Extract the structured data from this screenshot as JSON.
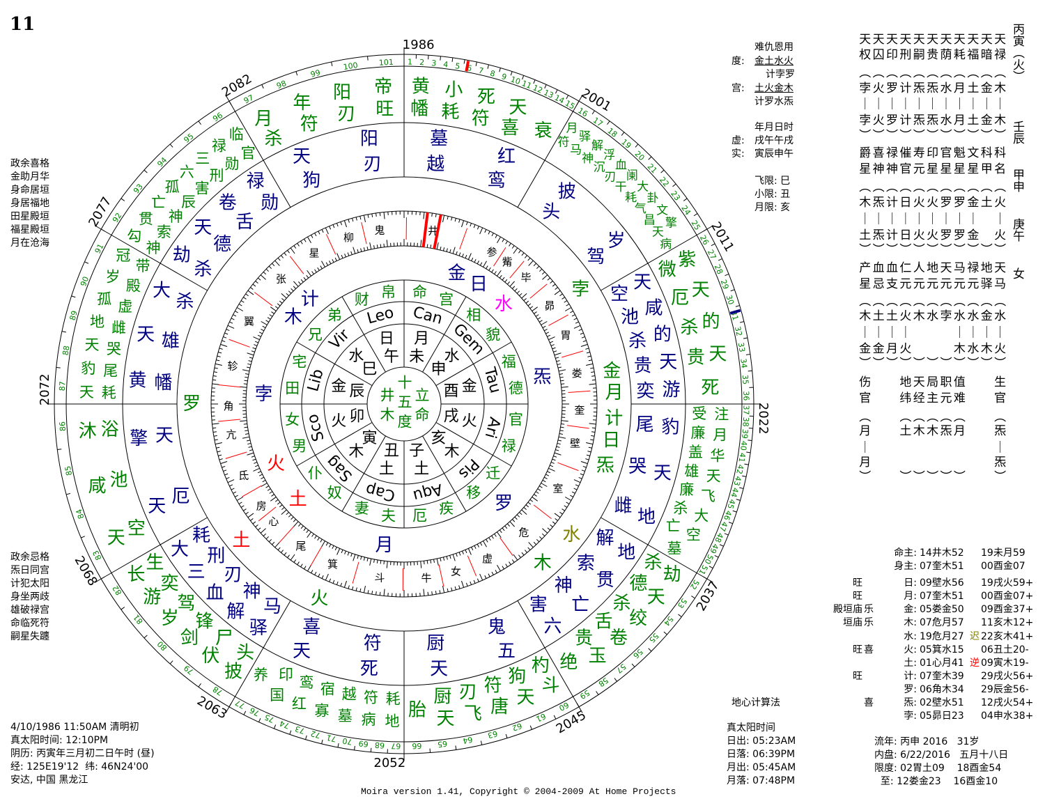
{
  "chart_number": "11",
  "colors": {
    "green": "#008000",
    "blue": "#000080",
    "red": "#ff0000",
    "magenta": "#ff00ff",
    "olive": "#808000",
    "black": "#000000"
  },
  "left_notes_top": [
    "政余喜格",
    "金助月华",
    "身命居垣",
    "身居福地",
    "田星殿垣",
    "福星殿垣",
    "月在沧海"
  ],
  "left_notes_bottom": [
    "政余忌格",
    "炁日同宫",
    "计犯太阳",
    "身坐两歧",
    "雄破禄宫",
    "命临死符",
    "嗣星失躔"
  ],
  "birth_info": [
    "4/10/1986 11:50AM 清明初",
    "真太阳时间: 12:10PM",
    "阴历: 丙寅年三月初二日午时 (昼)",
    "经: 125E19'12  纬: 46N24'00",
    "安达, 中国 黑龙江"
  ],
  "copyright": "Moira version 1.41, Copyright © 2004-2009 At Home Projects",
  "right_info": {
    "nan_header": "难仇恩用",
    "du_label": "度:",
    "du_value": "金土水火",
    "du_value2": "计孛罗",
    "gong_label": "宫:",
    "gong_value": "土火金木",
    "gong_value2": "计罗水炁",
    "time_header": "年月日时",
    "xu_label": "虚:",
    "xu_value": "戌午午戌",
    "shi_label": "实:",
    "shi_value": "寅辰申午",
    "feixian": "飞限: 巳",
    "xiaoxian": "小限: 丑",
    "yuexian": "月限: 亥"
  },
  "right_grid": [
    "天天天天天天天天天天天",
    "权囚印刑嗣贵荫耗福暗禄",
    "︵︵︵︵︵︵︵︵︵︵︵",
    "孛火罗计炁炁水月土金木",
    "｜｜｜｜｜｜｜｜｜｜｜",
    "孛火罗计炁炁水月土金木",
    "︶︶︶︶︶︶︶︶︶︶︶",
    "爵喜禄催寿印官魁文科科",
    "星神神官元星星星星甲名",
    "︵︵︵︵︵︵︵︵︵︵︵",
    "木炁计日火火罗罗金土火",
    "｜｜｜｜｜｜｜｜｜　｜",
    "土炁计日火火罗罗金　火",
    "︶︶︶︶︶︶︶︶︶︶︶",
    "产血血仁人地天马禄地天",
    "星忌支元元元元元元驿马",
    "︵︵︵︵︵︵︵︵︵︵︵",
    "木土土火木水孛水水金水",
    "｜｜｜｜　　　｜｜｜｜",
    "金金月火　　　木水木火",
    "︶︶︶︶︶︶︶︶︶︶︶",
    "伤　　地天局职值　　生",
    "官　　纬经主元难　　官",
    "︵　　︵︵︵︵︵　　︵",
    "月　　土木木炁月　　炁",
    "｜　　　　　　　　　｜",
    "月　　　　　　　　　炁",
    "︶　　︶︶︶︶︶　　︶"
  ],
  "right_labels": [
    "丙寅（火）",
    "壬辰",
    "甲申",
    "庚午",
    "女"
  ],
  "planet_table": [
    {
      "dignity": "",
      "mood": "",
      "key": "命主:",
      "pos1": "14井木52",
      "flag": "",
      "pos2": "19未月59"
    },
    {
      "dignity": "",
      "mood": "",
      "key": "身主:",
      "pos1": "07奎木51",
      "flag": "",
      "pos2": "00酉金07"
    },
    {
      "dignity": "旺",
      "mood": "",
      "key": "日:",
      "pos1": "09壁水56",
      "flag": "",
      "pos2": "19戌火59+"
    },
    {
      "dignity": "旺",
      "mood": "",
      "key": "月:",
      "pos1": "07奎木51",
      "flag": "",
      "pos2": "00酉金07+"
    },
    {
      "dignity": "殿垣庙",
      "mood": "乐",
      "key": "金:",
      "pos1": "05娄金50",
      "flag": "",
      "pos2": "09酉金37+"
    },
    {
      "dignity": "垣庙",
      "mood": "乐",
      "key": "木:",
      "pos1": "07危月57",
      "flag": "",
      "pos2": "11亥木12+"
    },
    {
      "dignity": "",
      "mood": "",
      "key": "水:",
      "pos1": "19危月27",
      "flag": "迟",
      "flag_color": "#808000",
      "pos2": "22亥木41+"
    },
    {
      "dignity": "旺",
      "mood": "喜",
      "key": "火:",
      "pos1": "05箕水15",
      "flag": "",
      "pos2": "06丑土20-"
    },
    {
      "dignity": "",
      "mood": "",
      "key": "土:",
      "pos1": "01心月41",
      "flag": "逆",
      "flag_color": "#ff0000",
      "pos2": "09寅木19-"
    },
    {
      "dignity": "旺",
      "mood": "",
      "key": "计:",
      "pos1": "07奎木39",
      "flag": "",
      "pos2": "29戌火56+"
    },
    {
      "dignity": "",
      "mood": "",
      "key": "罗:",
      "pos1": "06角木34",
      "flag": "",
      "pos2": "29辰金56-"
    },
    {
      "dignity": "",
      "mood": "喜",
      "key": "炁:",
      "pos1": "02壁水51",
      "flag": "",
      "pos2": "12戌火54+"
    },
    {
      "dignity": "",
      "mood": "",
      "key": "孛:",
      "pos1": "05昴日23",
      "flag": "",
      "pos2": "04申水38+"
    }
  ],
  "calc_method": "地心计算法",
  "sun_moon": [
    "真太阳时间",
    "日出: 05:23AM",
    "日落: 06:39PM",
    "月出: 05:45AM",
    "月落: 07:48PM"
  ],
  "liunian": [
    "流年: 丙申 2016   31岁",
    "内盘: 6/22/2016   五月十八日",
    "限度: 02胃土09    18酉金54",
    "  至: 12娄金23    16酉金10"
  ],
  "wheel": {
    "outer_years": [
      "1986",
      "2001",
      "2011",
      "2022",
      "2037",
      "2045",
      "2052",
      "2063",
      "2068",
      "2072",
      "2077",
      "2082"
    ],
    "ages": [
      1,
      2,
      3,
      4,
      5,
      6,
      7,
      8,
      9,
      10,
      11,
      12,
      13,
      14,
      15,
      16,
      17,
      18,
      19,
      20,
      21,
      22,
      23,
      24,
      25,
      26,
      27,
      28,
      29,
      30,
      31,
      32,
      33,
      34,
      35,
      36,
      37,
      38,
      39,
      40,
      41,
      42,
      43,
      44,
      45,
      46,
      47,
      48,
      49,
      50,
      51,
      52,
      53,
      54,
      55,
      56,
      57,
      58,
      59,
      60,
      61,
      62,
      63,
      64,
      65,
      66,
      67,
      68,
      69,
      70,
      71,
      72,
      73,
      74,
      75,
      76,
      77,
      78,
      79,
      80,
      81,
      82,
      83,
      84,
      85,
      86,
      87,
      88,
      89,
      90,
      91,
      92,
      93,
      94,
      95,
      96,
      97,
      98,
      99,
      100,
      101
    ],
    "mansions": [
      "井",
      "鬼",
      "柳",
      "星",
      "张",
      "翼",
      "轸",
      "角",
      "亢",
      "氐",
      "房",
      "心",
      "尾",
      "箕",
      "斗",
      "牛",
      "女",
      "虚",
      "危",
      "室",
      "壁",
      "奎",
      "娄",
      "胃",
      "昴",
      "毕",
      "觜",
      "参"
    ],
    "center": [
      "井木",
      "十五度",
      "立命"
    ],
    "palaces": [
      {
        "name": "命宫",
        "sign": "Can",
        "ruler": "月",
        "branch": "未",
        "outer_stars": [
          "黄幡",
          "小耗",
          "死符",
          "天喜",
          "衰"
        ],
        "inner_stars": [
          "墓越",
          "红鸾"
        ]
      },
      {
        "name": "相貌",
        "sign": "Gem",
        "ruler": "水",
        "branch": "申",
        "outer_stars": [
          "月符",
          "驿马",
          "解神",
          "浮沉",
          "血刃",
          "阑干",
          "大耗",
          "卦气",
          "文昌",
          "擎天",
          "病"
        ],
        "inner_stars": [
          "披头",
          "岁驾"
        ]
      },
      {
        "name": "福德",
        "sign": "Tau",
        "ruler": "金",
        "branch": "酉",
        "outer_stars": [
          "紫微",
          "天厄",
          "的杀",
          "天贵",
          "死"
        ],
        "inner_stars": [
          "天空",
          "咸池",
          "的杀",
          "天贵",
          "游奕"
        ]
      },
      {
        "name": "官禄",
        "sign": "Ari",
        "ruler": "火",
        "branch": "戌",
        "outer_stars": [
          "注受",
          "月廉",
          "华盖",
          "天雄",
          "飞廉",
          "大杀",
          "空亡",
          "墓"
        ],
        "inner_stars": [
          "豹尾",
          "天哭",
          "地雌"
        ]
      },
      {
        "name": "迁移",
        "sign": "Pis",
        "ruler": "木",
        "branch": "亥",
        "outer_stars": [
          "劫杀",
          "天德",
          "绞杀",
          "卷舌",
          "玉贵",
          "绝"
        ],
        "inner_stars": [
          "地解",
          "贯索",
          "亡神",
          "六害"
        ]
      },
      {
        "name": "疾厄",
        "sign": "Aqu",
        "ruler": "土",
        "branch": "子",
        "outer_stars": [
          "斗杓",
          "天狗",
          "唐符",
          "飞刃",
          "天厨",
          "胎"
        ],
        "inner_stars": [
          "五鬼",
          "天厨"
        ]
      },
      {
        "name": "夫妻",
        "sign": "Cap",
        "ruler": "土",
        "branch": "丑",
        "outer_stars": [
          "地耗",
          "病符",
          "墓越",
          "寡宿",
          "红鸾",
          "国印",
          "养"
        ],
        "inner_stars": [
          "死符",
          "天喜"
        ]
      },
      {
        "name": "奴仆",
        "sign": "Sag",
        "ruler": "木",
        "branch": "寅",
        "outer_stars": [
          "披头",
          "伏尸",
          "剑锋",
          "岁驾",
          "游奕",
          "长生"
        ],
        "inner_stars": [
          "驿马",
          "解神",
          "血刃",
          "三刑",
          "大耗"
        ]
      },
      {
        "name": "男女",
        "sign": "Sco",
        "ruler": "火",
        "branch": "卯",
        "outer_stars": [
          "天空",
          "咸池",
          "沐浴"
        ],
        "inner_stars": [
          "天厄",
          "擎天"
        ]
      },
      {
        "name": "田宅",
        "sign": "Lib",
        "ruler": "金",
        "branch": "辰",
        "outer_stars": [
          "天耗",
          "豹尾",
          "天哭",
          "地雌",
          "孤虚",
          "岁殿",
          "冠带"
        ],
        "inner_stars": [
          "黄幡",
          "天雄",
          "大杀"
        ]
      },
      {
        "name": "兄弟",
        "sign": "Vir",
        "ruler": "水",
        "branch": "巳",
        "outer_stars": [
          "勾神",
          "贯索",
          "亡神",
          "孤辰",
          "六害",
          "三刑",
          "禄勋",
          "临官"
        ],
        "inner_stars": [
          "劫杀",
          "天德",
          "卷舌",
          "禄勋"
        ]
      },
      {
        "name": "财帛",
        "sign": "Leo",
        "ruler": "日",
        "branch": "午",
        "outer_stars": [
          "月杀",
          "年符",
          "阳刃",
          "帝旺"
        ],
        "inner_stars": [
          "天狗",
          "阳刃"
        ]
      }
    ],
    "planets": [
      {
        "glyph": "金",
        "color": "#000080"
      },
      {
        "glyph": "日",
        "color": "#000080"
      },
      {
        "glyph": "水",
        "color": "#ff00ff"
      },
      {
        "glyph": "炁",
        "color": "#000080"
      },
      {
        "glyph": "罗",
        "color": "#000080"
      },
      {
        "glyph": "月",
        "color": "#000080"
      },
      {
        "glyph": "土",
        "color": "#ff0000"
      },
      {
        "glyph": "火",
        "color": "#ff0000"
      },
      {
        "glyph": "孛",
        "color": "#000080"
      },
      {
        "glyph": "木",
        "color": "#000080"
      },
      {
        "glyph": "计",
        "color": "#000080"
      },
      {
        "glyph": "孛",
        "color": "#008000"
      },
      {
        "glyph": "金",
        "color": "#008000"
      },
      {
        "glyph": "月",
        "color": "#008000"
      },
      {
        "glyph": "计",
        "color": "#008000"
      },
      {
        "glyph": "日",
        "color": "#008000"
      },
      {
        "glyph": "炁",
        "color": "#008000"
      },
      {
        "glyph": "水",
        "color": "#808000"
      },
      {
        "glyph": "木",
        "color": "#008000"
      },
      {
        "glyph": "火",
        "color": "#008000"
      },
      {
        "glyph": "土",
        "color": "#ff0000"
      },
      {
        "glyph": "罗",
        "color": "#008000"
      }
    ]
  }
}
